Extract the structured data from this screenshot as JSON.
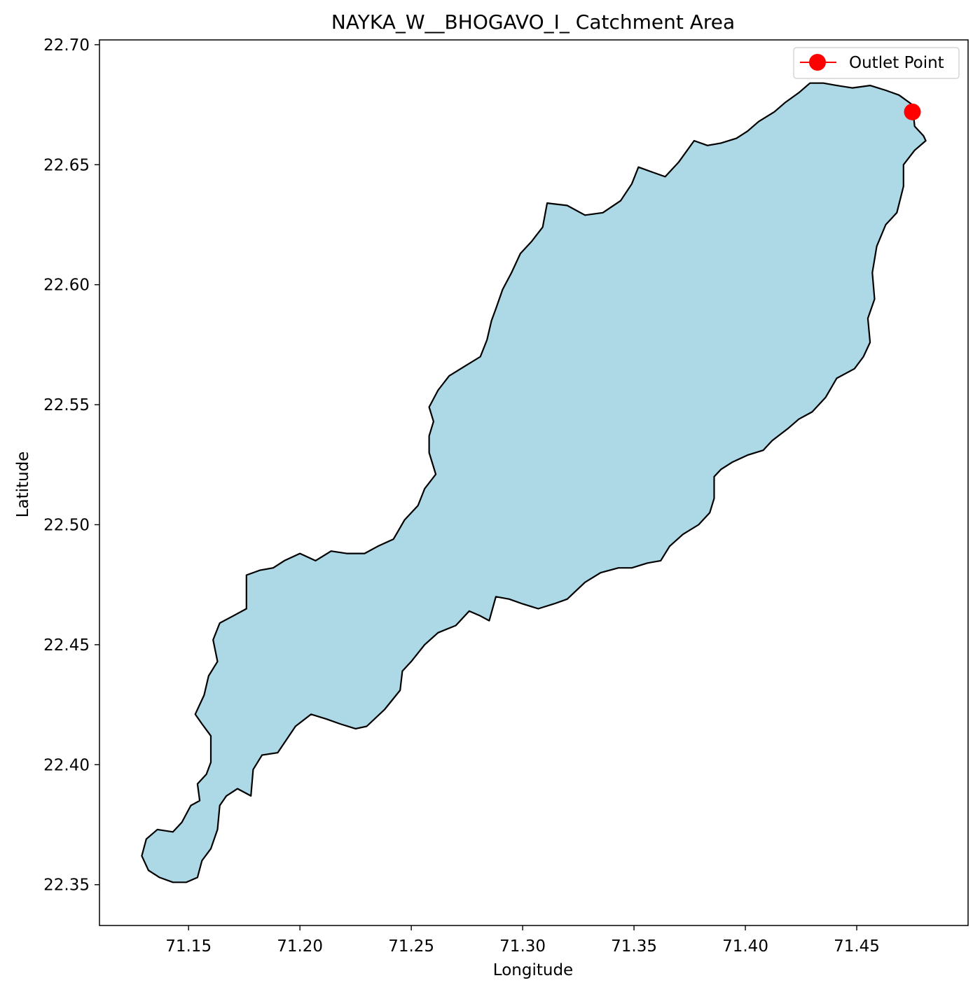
{
  "chart_data": {
    "type": "map",
    "title": "NAYKA_W__BHOGAVO_I_ Catchment Area",
    "xlabel": "Longitude",
    "ylabel": "Latitude",
    "xlim": [
      71.11,
      71.5
    ],
    "ylim": [
      22.333,
      22.702
    ],
    "xticks": [
      "71.15",
      "71.20",
      "71.25",
      "71.30",
      "71.35",
      "71.40",
      "71.45"
    ],
    "yticks": [
      "22.35",
      "22.40",
      "22.45",
      "22.50",
      "22.55",
      "22.60",
      "22.65",
      "22.70"
    ],
    "grid": false,
    "legend_position": "top-right",
    "legend": [
      {
        "label": "Outlet Point",
        "marker": "circle",
        "color": "#ff0000"
      }
    ],
    "catchment": {
      "fill": "#add8e6",
      "edge": "#000000",
      "boundary": [
        [
          71.131,
          22.369
        ],
        [
          71.136,
          22.373
        ],
        [
          71.143,
          22.372
        ],
        [
          71.147,
          22.376
        ],
        [
          71.151,
          22.383
        ],
        [
          71.155,
          22.385
        ],
        [
          71.154,
          22.392
        ],
        [
          71.158,
          22.396
        ],
        [
          71.16,
          22.401
        ],
        [
          71.16,
          22.412
        ],
        [
          71.156,
          22.417
        ],
        [
          71.153,
          22.421
        ],
        [
          71.157,
          22.429
        ],
        [
          71.159,
          22.437
        ],
        [
          71.163,
          22.443
        ],
        [
          71.161,
          22.452
        ],
        [
          71.164,
          22.459
        ],
        [
          71.17,
          22.462
        ],
        [
          71.176,
          22.465
        ],
        [
          71.176,
          22.479
        ],
        [
          71.182,
          22.481
        ],
        [
          71.188,
          22.482
        ],
        [
          71.193,
          22.485
        ],
        [
          71.2,
          22.488
        ],
        [
          71.207,
          22.485
        ],
        [
          71.214,
          22.489
        ],
        [
          71.221,
          22.488
        ],
        [
          71.229,
          22.488
        ],
        [
          71.235,
          22.491
        ],
        [
          71.242,
          22.494
        ],
        [
          71.247,
          22.502
        ],
        [
          71.253,
          22.508
        ],
        [
          71.256,
          22.515
        ],
        [
          71.261,
          22.521
        ],
        [
          71.258,
          22.53
        ],
        [
          71.258,
          22.537
        ],
        [
          71.26,
          22.543
        ],
        [
          71.258,
          22.549
        ],
        [
          71.262,
          22.556
        ],
        [
          71.267,
          22.562
        ],
        [
          71.274,
          22.566
        ],
        [
          71.281,
          22.57
        ],
        [
          71.284,
          22.577
        ],
        [
          71.286,
          22.585
        ],
        [
          71.288,
          22.59
        ],
        [
          71.291,
          22.598
        ],
        [
          71.295,
          22.605
        ],
        [
          71.299,
          22.613
        ],
        [
          71.304,
          22.618
        ],
        [
          71.309,
          22.624
        ],
        [
          71.311,
          22.634
        ],
        [
          71.32,
          22.633
        ],
        [
          71.328,
          22.629
        ],
        [
          71.336,
          22.63
        ],
        [
          71.344,
          22.635
        ],
        [
          71.349,
          22.642
        ],
        [
          71.352,
          22.649
        ],
        [
          71.358,
          22.647
        ],
        [
          71.364,
          22.645
        ],
        [
          71.37,
          22.651
        ],
        [
          71.377,
          22.66
        ],
        [
          71.383,
          22.658
        ],
        [
          71.389,
          22.659
        ],
        [
          71.396,
          22.661
        ],
        [
          71.401,
          22.664
        ],
        [
          71.406,
          22.668
        ],
        [
          71.413,
          22.672
        ],
        [
          71.418,
          22.676
        ],
        [
          71.424,
          22.68
        ],
        [
          71.429,
          22.684
        ],
        [
          71.435,
          22.684
        ],
        [
          71.441,
          22.683
        ],
        [
          71.448,
          22.682
        ],
        [
          71.456,
          22.683
        ],
        [
          71.463,
          22.681
        ],
        [
          71.469,
          22.679
        ],
        [
          71.475,
          22.675
        ],
        [
          71.476,
          22.666
        ],
        [
          71.48,
          22.662
        ],
        [
          71.481,
          22.66
        ],
        [
          71.476,
          22.656
        ],
        [
          71.471,
          22.65
        ],
        [
          71.471,
          22.641
        ],
        [
          71.468,
          22.63
        ],
        [
          71.463,
          22.625
        ],
        [
          71.459,
          22.616
        ],
        [
          71.457,
          22.605
        ],
        [
          71.458,
          22.594
        ],
        [
          71.455,
          22.586
        ],
        [
          71.456,
          22.576
        ],
        [
          71.453,
          22.57
        ],
        [
          71.449,
          22.565
        ],
        [
          71.441,
          22.561
        ],
        [
          71.436,
          22.553
        ],
        [
          71.43,
          22.547
        ],
        [
          71.424,
          22.544
        ],
        [
          71.419,
          22.54
        ],
        [
          71.412,
          22.535
        ],
        [
          71.408,
          22.531
        ],
        [
          71.401,
          22.529
        ],
        [
          71.394,
          22.526
        ],
        [
          71.389,
          22.523
        ],
        [
          71.386,
          22.52
        ],
        [
          71.386,
          22.511
        ],
        [
          71.384,
          22.505
        ],
        [
          71.379,
          22.5
        ],
        [
          71.372,
          22.496
        ],
        [
          71.366,
          22.491
        ],
        [
          71.362,
          22.485
        ],
        [
          71.356,
          22.484
        ],
        [
          71.349,
          22.482
        ],
        [
          71.343,
          22.482
        ],
        [
          71.335,
          22.48
        ],
        [
          71.328,
          22.476
        ],
        [
          71.32,
          22.469
        ],
        [
          71.314,
          22.467
        ],
        [
          71.307,
          22.465
        ],
        [
          71.3,
          22.467
        ],
        [
          71.294,
          22.469
        ],
        [
          71.288,
          22.47
        ],
        [
          71.285,
          22.46
        ],
        [
          71.281,
          22.462
        ],
        [
          71.276,
          22.464
        ],
        [
          71.27,
          22.458
        ],
        [
          71.262,
          22.455
        ],
        [
          71.256,
          22.45
        ],
        [
          71.25,
          22.443
        ],
        [
          71.246,
          22.439
        ],
        [
          71.245,
          22.431
        ],
        [
          71.238,
          22.423
        ],
        [
          71.23,
          22.416
        ],
        [
          71.225,
          22.415
        ],
        [
          71.218,
          22.417
        ],
        [
          71.212,
          22.419
        ],
        [
          71.205,
          22.421
        ],
        [
          71.198,
          22.416
        ],
        [
          71.19,
          22.405
        ],
        [
          71.183,
          22.404
        ],
        [
          71.179,
          22.398
        ],
        [
          71.178,
          22.387
        ],
        [
          71.172,
          22.39
        ],
        [
          71.167,
          22.387
        ],
        [
          71.164,
          22.383
        ],
        [
          71.163,
          22.373
        ],
        [
          71.16,
          22.365
        ],
        [
          71.156,
          22.36
        ],
        [
          71.154,
          22.353
        ],
        [
          71.149,
          22.351
        ],
        [
          71.143,
          22.351
        ],
        [
          71.137,
          22.353
        ],
        [
          71.132,
          22.356
        ],
        [
          71.129,
          22.362
        ]
      ]
    },
    "outlet_point": {
      "lon": 71.475,
      "lat": 22.672,
      "label": "Outlet Point",
      "color": "#ff0000"
    }
  }
}
